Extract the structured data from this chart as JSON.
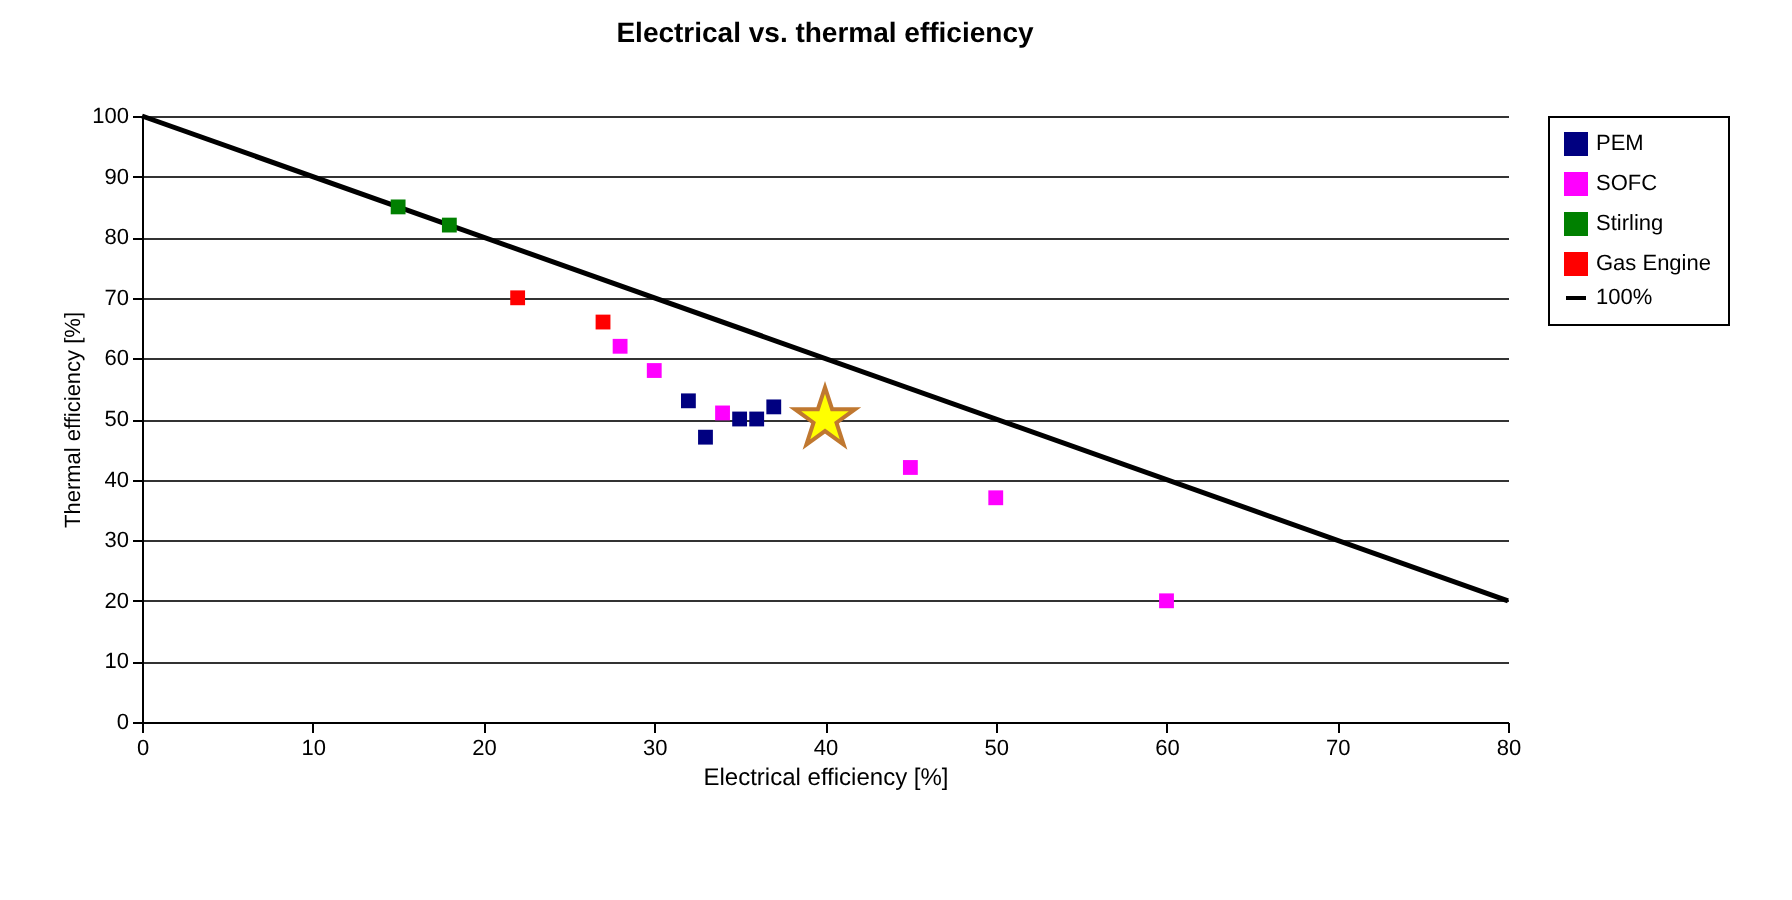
{
  "chart_data": {
    "type": "scatter",
    "title": "Electrical vs. thermal efficiency",
    "xlabel": "Electrical efficiency [%]",
    "ylabel": "Thermal efficiency [%]",
    "xlim": [
      0,
      80
    ],
    "xticks": [
      0,
      10,
      20,
      30,
      40,
      50,
      60,
      70,
      80
    ],
    "ylim": [
      0,
      100
    ],
    "yticks": [
      0,
      10,
      20,
      30,
      40,
      50,
      60,
      70,
      80,
      90,
      100
    ],
    "grid": "y",
    "legend": "right",
    "marker": "square",
    "series": [
      {
        "name": "PEM",
        "color": "#000080",
        "x": [
          32,
          33,
          35,
          36,
          37
        ],
        "values": [
          53,
          47,
          50,
          50,
          52
        ]
      },
      {
        "name": "SOFC",
        "color": "#ff00ff",
        "x": [
          28,
          30,
          34,
          45,
          50,
          60
        ],
        "values": [
          62,
          58,
          51,
          42,
          37,
          20
        ]
      },
      {
        "name": "Stirling",
        "color": "#008000",
        "x": [
          15,
          18
        ],
        "values": [
          85,
          82
        ]
      },
      {
        "name": "Gas Engine",
        "color": "#ff0000",
        "x": [
          22,
          27
        ],
        "values": [
          70,
          66
        ]
      },
      {
        "name": "100%",
        "type": "line",
        "color": "#000000",
        "x": [
          0,
          80
        ],
        "values": [
          100,
          20
        ],
        "marker": "none",
        "line_style": "solid"
      },
      {
        "color": "#ffff00",
        "x": [
          40
        ],
        "values": [
          50
        ],
        "marker": "star"
      }
    ]
  }
}
